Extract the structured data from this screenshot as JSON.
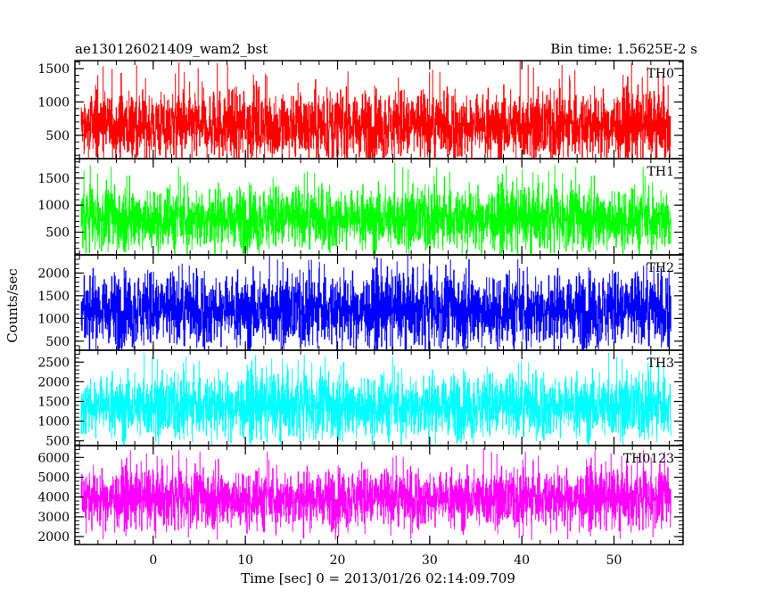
{
  "header": {
    "title": "ae130126021409_wam2_bst",
    "bin_time": "Bin time: 1.5625E-2 s"
  },
  "axes": {
    "xlabel": "Time [sec] 0 = 2013/01/26 02:14:09.709",
    "ylabel": "Counts/sec"
  },
  "chart_data": {
    "type": "line",
    "title": "ae130126021409_wam2_bst",
    "xlabel": "Time [sec] 0 = 2013/01/26 02:14:09.709",
    "ylabel": "Counts/sec",
    "xlim": [
      -8.5,
      57.5
    ],
    "x_range_data": [
      -7.8,
      56.2
    ],
    "x_ticks": [
      0,
      10,
      20,
      30,
      40,
      50
    ],
    "grid": false,
    "panels": [
      {
        "name": "TH0",
        "color": "#ff0000",
        "ylim": [
          150,
          1620
        ],
        "y_ticks": [
          500,
          1000,
          1500
        ],
        "mean": 650,
        "spread": 270,
        "max_peak": 1600,
        "min_trough": 160
      },
      {
        "name": "TH1",
        "color": "#00ff00",
        "ylim": [
          80,
          1860
        ],
        "y_ticks": [
          500,
          1000,
          1500
        ],
        "mean": 760,
        "spread": 300,
        "max_peak": 1750,
        "min_trough": 150
      },
      {
        "name": "TH2",
        "color": "#0000ff",
        "ylim": [
          300,
          2400
        ],
        "y_ticks": [
          500,
          1000,
          1500,
          2000
        ],
        "mean": 1200,
        "spread": 420,
        "max_peak": 2350,
        "min_trough": 320
      },
      {
        "name": "TH3",
        "color": "#00ffff",
        "ylim": [
          380,
          2800
        ],
        "y_ticks": [
          500,
          1000,
          1500,
          2000,
          2500
        ],
        "mean": 1400,
        "spread": 420,
        "max_peak": 2700,
        "min_trough": 450
      },
      {
        "name": "TH0123",
        "color": "#ff00ff",
        "ylim": [
          1600,
          6600
        ],
        "y_ticks": [
          2000,
          3000,
          4000,
          5000,
          6000
        ],
        "mean": 3950,
        "spread": 750,
        "max_peak": 6400,
        "min_trough": 1800
      }
    ]
  }
}
